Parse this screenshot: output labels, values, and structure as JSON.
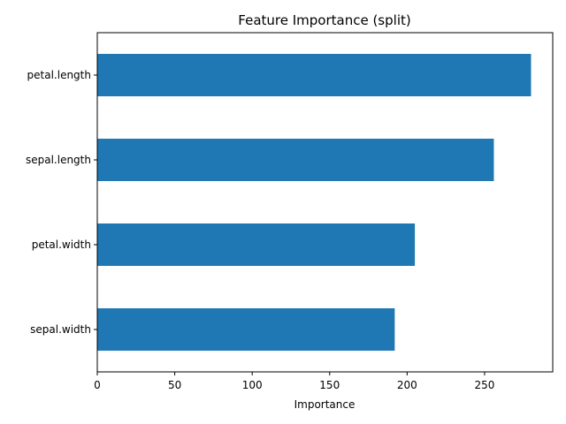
{
  "chart_data": {
    "type": "bar",
    "orientation": "horizontal",
    "title": "Feature Importance (split)",
    "xlabel": "Importance",
    "ylabel": "",
    "categories": [
      "petal.length",
      "sepal.length",
      "petal.width",
      "sepal.width"
    ],
    "values": [
      280,
      256,
      205,
      192
    ],
    "xlim": [
      0,
      294
    ],
    "xticks": [
      "0",
      "50",
      "100",
      "150",
      "200",
      "250"
    ],
    "grid": false,
    "bar_color": "#1f77b4"
  }
}
